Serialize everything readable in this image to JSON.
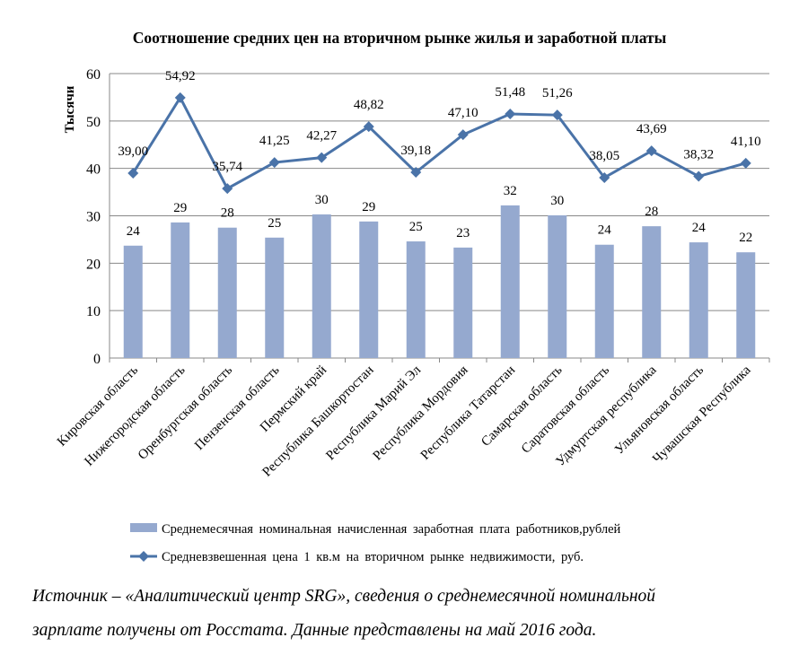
{
  "chart_data": {
    "type": "bar+line",
    "title": "Соотношение средних цен на вторичном рынке жилья и заработной платы",
    "ylabel": "Тысячи",
    "ylim": [
      0,
      60
    ],
    "yticks": [
      0,
      10,
      20,
      30,
      40,
      50,
      60
    ],
    "grid": true,
    "legend_position": "bottom",
    "categories": [
      "Кировская область",
      "Нижегородская область",
      "Оренбургская область",
      "Пензенская область",
      "Пермский край",
      "Республика Башкортостан",
      "Республика Марий Эл",
      "Республика Мордовия",
      "Республика Татарстан",
      "Самарская область",
      "Саратовская область",
      "Удмуртская республика",
      "Ульяновская область",
      "Чувашская Республика"
    ],
    "series": [
      {
        "name": "Среднемесячная номинальная начисленная заработная плата работников,рублей",
        "type": "bar",
        "color": "#95A9CF",
        "values": [
          23.7,
          28.6,
          27.5,
          25.4,
          30.3,
          28.8,
          24.6,
          23.3,
          32.2,
          30.1,
          23.9,
          27.8,
          24.4,
          22.3
        ],
        "labels": [
          "24",
          "29",
          "28",
          "25",
          "30",
          "29",
          "25",
          "23",
          "32",
          "30",
          "24",
          "28",
          "24",
          "22"
        ]
      },
      {
        "name": "Средневзвешенная цена 1 кв.м на вторичном рынке недвижимости, руб.",
        "type": "line",
        "color": "#4A73A8",
        "values": [
          39.0,
          54.92,
          35.74,
          41.25,
          42.27,
          48.82,
          39.18,
          47.1,
          51.48,
          51.26,
          38.05,
          43.69,
          38.32,
          41.1
        ],
        "labels": [
          "39,00",
          "54,92",
          "35,74",
          "41,25",
          "42,27",
          "48,82",
          "39,18",
          "47,10",
          "51,48",
          "51,26",
          "38,05",
          "43,69",
          "38,32",
          "41,10"
        ]
      }
    ]
  },
  "source": {
    "line1": "Источник – «Аналитический центр SRG», сведения о среднемесячной номинальной",
    "line2": "зарплате получены от Росстата. Данные представлены на май 2016 года."
  }
}
